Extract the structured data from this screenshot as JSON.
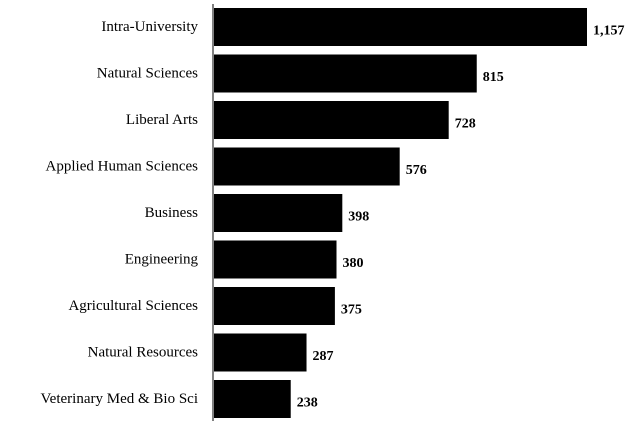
{
  "chart_data": {
    "type": "bar",
    "orientation": "horizontal",
    "categories": [
      "Intra-University",
      "Natural Sciences",
      "Liberal Arts",
      "Applied Human Sciences",
      "Business",
      "Engineering",
      "Agricultural Sciences",
      "Natural Resources",
      "Veterinary Med & Bio Sci"
    ],
    "values": [
      1157,
      815,
      728,
      576,
      398,
      380,
      375,
      287,
      238
    ],
    "value_labels": [
      "1,157",
      "815",
      "728",
      "576",
      "398",
      "380",
      "375",
      "287",
      "238"
    ],
    "title": "",
    "xlabel": "",
    "ylabel": "",
    "xlim": [
      0,
      1157
    ],
    "grid": false,
    "legend": "none",
    "bar_color": "#000000"
  }
}
